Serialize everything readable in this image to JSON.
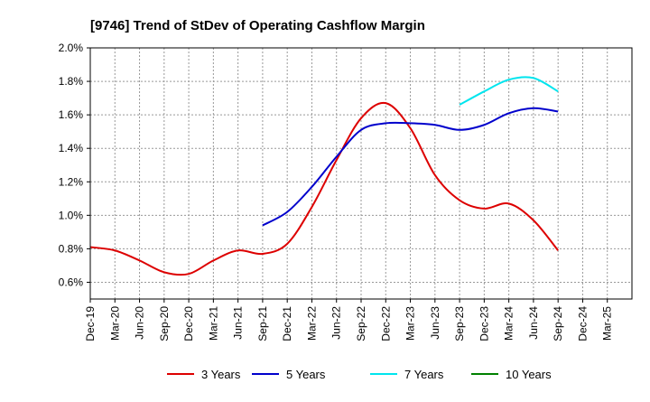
{
  "chart_data": {
    "type": "line",
    "title": "[9746]  Trend of StDev of Operating Cashflow Margin",
    "xlabel": "",
    "ylabel": "",
    "x": [
      "Dec-19",
      "Mar-20",
      "Jun-20",
      "Sep-20",
      "Dec-20",
      "Mar-21",
      "Jun-21",
      "Sep-21",
      "Dec-21",
      "Mar-22",
      "Jun-22",
      "Sep-22",
      "Dec-22",
      "Mar-23",
      "Jun-23",
      "Sep-23",
      "Dec-23",
      "Mar-24",
      "Jun-24",
      "Sep-24",
      "Dec-24",
      "Mar-25"
    ],
    "x_tick_labels": [
      "Dec-19",
      "Mar-20",
      "Jun-20",
      "Sep-20",
      "Dec-20",
      "Mar-21",
      "Jun-21",
      "Sep-21",
      "Dec-21",
      "Mar-22",
      "Jun-22",
      "Sep-22",
      "Dec-22",
      "Mar-23",
      "Jun-23",
      "Sep-23",
      "Dec-23",
      "Mar-24",
      "Jun-24",
      "Sep-24",
      "Dec-24",
      "Mar-25"
    ],
    "y_ticks": [
      0.6,
      0.8,
      1.0,
      1.2,
      1.4,
      1.6,
      1.8,
      2.0
    ],
    "y_tick_labels": [
      "0.6%",
      "0.8%",
      "1.0%",
      "1.2%",
      "1.4%",
      "1.6%",
      "1.8%",
      "2.0%"
    ],
    "ylim": [
      0.5,
      2.0
    ],
    "grid": true,
    "legend_position": "bottom",
    "series": [
      {
        "name": "3 Years",
        "color": "#dd0000",
        "values": [
          0.81,
          0.79,
          0.73,
          0.66,
          0.65,
          0.73,
          0.79,
          0.77,
          0.83,
          1.05,
          1.33,
          1.58,
          1.67,
          1.52,
          1.24,
          1.09,
          1.04,
          1.07,
          0.97,
          0.79,
          null,
          null
        ]
      },
      {
        "name": "5 Years",
        "color": "#0000cc",
        "values": [
          null,
          null,
          null,
          null,
          null,
          null,
          null,
          0.94,
          1.02,
          1.17,
          1.35,
          1.51,
          1.55,
          1.55,
          1.54,
          1.51,
          1.54,
          1.61,
          1.64,
          1.62,
          null,
          null
        ]
      },
      {
        "name": "7 Years",
        "color": "#00e5ee",
        "values": [
          null,
          null,
          null,
          null,
          null,
          null,
          null,
          null,
          null,
          null,
          null,
          null,
          null,
          null,
          null,
          1.66,
          1.74,
          1.81,
          1.82,
          1.74,
          null,
          null
        ]
      },
      {
        "name": "10 Years",
        "color": "#008000",
        "values": [
          null,
          null,
          null,
          null,
          null,
          null,
          null,
          null,
          null,
          null,
          null,
          null,
          null,
          null,
          null,
          null,
          null,
          null,
          null,
          null,
          null,
          null
        ]
      }
    ]
  }
}
